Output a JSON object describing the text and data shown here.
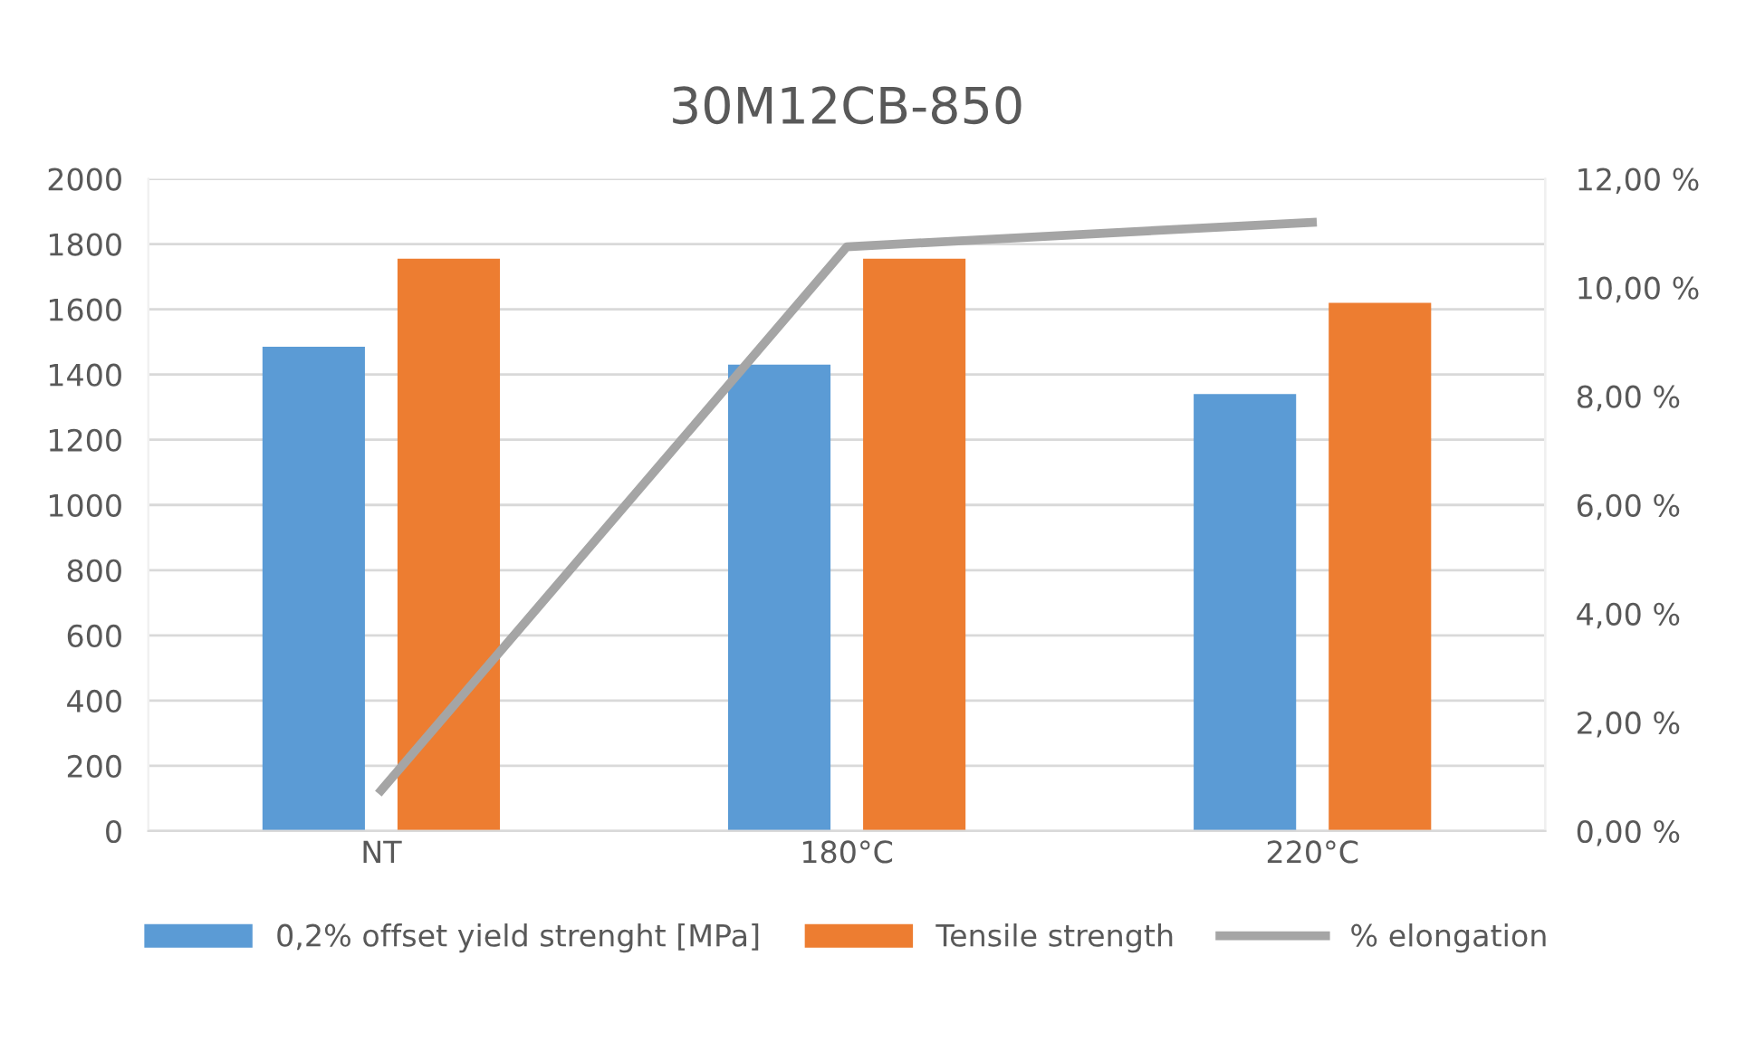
{
  "chart_data": {
    "type": "bar",
    "title": "30M12CB-850",
    "categories": [
      "NT",
      "180°C",
      "220°C"
    ],
    "series": [
      {
        "name": "0,2% offset yield strenght [MPa]",
        "color": "#5b9bd5",
        "values": [
          1485,
          1430,
          1340
        ]
      },
      {
        "name": "Tensile strength",
        "color": "#ed7d31",
        "values": [
          1755,
          1755,
          1620
        ]
      },
      {
        "name": "% elongation",
        "color": "#a5a5a5",
        "type": "line",
        "axis": "y2",
        "values": [
          0.75,
          10.75,
          11.2
        ]
      }
    ],
    "ylim": [
      0,
      2000
    ],
    "yticks": [
      0,
      200,
      400,
      600,
      800,
      1000,
      1200,
      1400,
      1600,
      1800,
      2000
    ],
    "y2lim": [
      0,
      12
    ],
    "y2ticks": [
      {
        "value": 0,
        "label": "0,00 %"
      },
      {
        "value": 2,
        "label": "2,00 %"
      },
      {
        "value": 4,
        "label": "4,00 %"
      },
      {
        "value": 6,
        "label": "6,00 %"
      },
      {
        "value": 8,
        "label": "8,00 %"
      },
      {
        "value": 10,
        "label": "10,00 %"
      },
      {
        "value": 12,
        "label": "12,00 %"
      }
    ],
    "grid": "y",
    "legend": "bottom",
    "marker": "none",
    "line_style": "solid"
  }
}
